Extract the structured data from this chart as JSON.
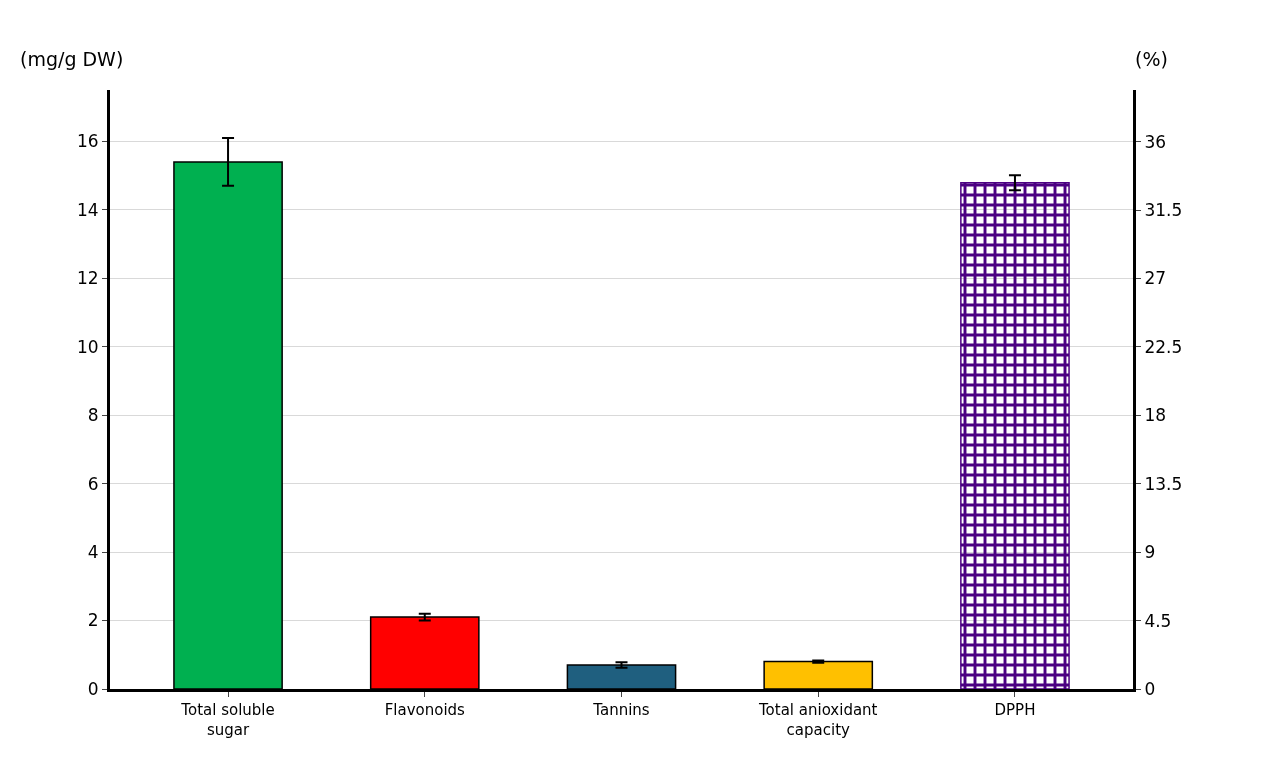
{
  "chart_data": {
    "type": "bar",
    "categories": [
      "Total soluble sugar",
      "Flavonoids",
      "Tannins",
      "Total anioxidant capacity",
      "DPPH"
    ],
    "series": [
      {
        "colors": [
          "#00b050",
          "#ff0000",
          "#1f5f7f",
          "#ffc000",
          null
        ],
        "values": [
          15.4,
          2.1,
          0.7,
          0.8,
          null
        ],
        "errors": [
          0.7,
          0.1,
          0.08,
          0.03,
          null
        ]
      },
      {
        "color": "#4b0082",
        "axis": "y2",
        "values": [
          null,
          null,
          null,
          null,
          33.3
        ],
        "errors": [
          null,
          null,
          null,
          null,
          0.5
        ]
      }
    ],
    "ylabel": "(mg/g DW)",
    "y2label": "(%)",
    "ylim": [
      0,
      17.5
    ],
    "yticks": [
      0,
      2,
      4,
      6,
      8,
      10,
      12,
      14,
      16
    ],
    "y2lim": [
      0,
      39.4
    ],
    "y2ticks": [
      0,
      4.5,
      9,
      13.5,
      18,
      22.5,
      27,
      31.5,
      36
    ],
    "grid": "y"
  }
}
